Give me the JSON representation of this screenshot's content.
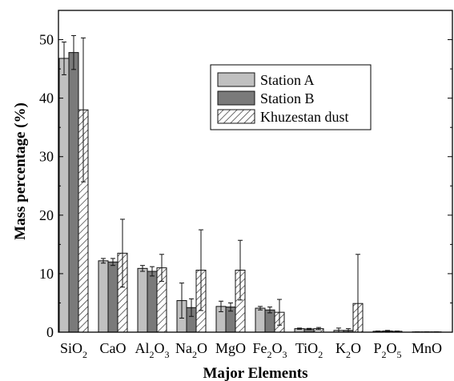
{
  "chart_data": {
    "type": "bar",
    "xlabel": "Major Elements",
    "ylabel": "Mass percentage (%)",
    "ylim": [
      0,
      55
    ],
    "yticks": [
      0,
      10,
      20,
      30,
      40,
      50
    ],
    "grid": false,
    "legend_position": "top-right (inside plot)",
    "categories": [
      "SiO2",
      "CaO",
      "Al2O3",
      "Na2O",
      "MgO",
      "Fe2O3",
      "TiO2",
      "K2O",
      "P2O5",
      "MnO"
    ],
    "category_labels": [
      [
        {
          "t": "SiO"
        },
        {
          "t": "2",
          "sub": true
        }
      ],
      [
        {
          "t": "CaO"
        }
      ],
      [
        {
          "t": "Al"
        },
        {
          "t": "2",
          "sub": true
        },
        {
          "t": "O"
        },
        {
          "t": "3",
          "sub": true
        }
      ],
      [
        {
          "t": "Na"
        },
        {
          "t": "2",
          "sub": true
        },
        {
          "t": "O"
        }
      ],
      [
        {
          "t": "MgO"
        }
      ],
      [
        {
          "t": "Fe"
        },
        {
          "t": "2",
          "sub": true
        },
        {
          "t": "O"
        },
        {
          "t": "3",
          "sub": true
        }
      ],
      [
        {
          "t": "TiO"
        },
        {
          "t": "2",
          "sub": true
        }
      ],
      [
        {
          "t": "K"
        },
        {
          "t": "2",
          "sub": true
        },
        {
          "t": "O"
        }
      ],
      [
        {
          "t": "P"
        },
        {
          "t": "2",
          "sub": true
        },
        {
          "t": "O"
        },
        {
          "t": "5",
          "sub": true
        }
      ],
      [
        {
          "t": "MnO"
        }
      ]
    ],
    "series": [
      {
        "name": "Station A",
        "fill": "#c0c0c0",
        "pattern": "solid",
        "values": [
          46.8,
          12.2,
          10.9,
          5.4,
          4.4,
          4.1,
          0.6,
          0.3,
          0.15,
          0.05
        ],
        "errors": [
          2.8,
          0.4,
          0.5,
          3.0,
          0.9,
          0.3,
          0.1,
          0.4,
          0.05,
          0.02
        ]
      },
      {
        "name": "Station B",
        "fill": "#7a7a7a",
        "pattern": "solid",
        "values": [
          47.8,
          12.0,
          10.4,
          4.2,
          4.3,
          3.8,
          0.55,
          0.3,
          0.2,
          0.05
        ],
        "errors": [
          2.9,
          0.6,
          0.8,
          1.5,
          0.7,
          0.5,
          0.1,
          0.3,
          0.1,
          0.02
        ]
      },
      {
        "name": "Khuzestan dust",
        "fill": "#ffffff",
        "pattern": "diagonal-hatch",
        "values": [
          38.0,
          13.5,
          11.0,
          10.6,
          10.6,
          3.4,
          0.6,
          4.9,
          0.15,
          0.05
        ],
        "errors": [
          12.3,
          5.8,
          2.3,
          6.9,
          5.1,
          2.2,
          0.2,
          8.4,
          0.05,
          0.02
        ]
      }
    ]
  }
}
